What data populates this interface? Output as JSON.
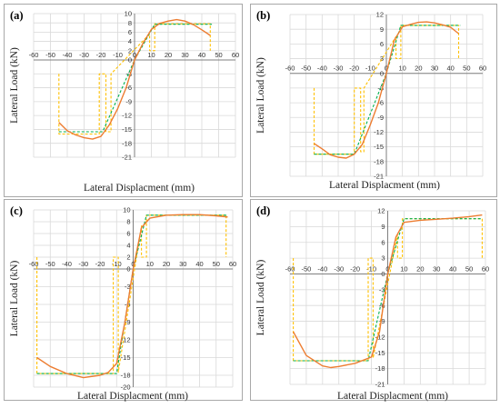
{
  "colors": {
    "curve": "#ed7d31",
    "bilinear": "#00b050",
    "guide": "#ffc000",
    "grid": "#d9d9d9",
    "axis": "#7f7f7f"
  },
  "chart_data": [
    {
      "type": "line",
      "panel_label": "(a)",
      "xlabel": "Lateral Displacment (mm)",
      "ylabel": "Lateral Load (kN)",
      "xlim": [
        -60,
        60
      ],
      "ylim": [
        -21,
        10
      ],
      "x_ticks": [
        -60,
        -50,
        -40,
        -30,
        -20,
        -10,
        0,
        10,
        20,
        30,
        40,
        50,
        60
      ],
      "y_ticks": [
        -21,
        -18,
        -15,
        -12,
        -9,
        -6,
        -3,
        0,
        2,
        4,
        6,
        8,
        10
      ],
      "grid": true,
      "series": [
        {
          "style": "solid",
          "color": "orange",
          "x": [
            -45,
            -40,
            -35,
            -30,
            -25,
            -20,
            -15,
            -10,
            -5,
            0,
            5,
            10,
            15,
            20,
            25,
            30,
            35,
            40,
            45
          ],
          "y": [
            -13.5,
            -15.3,
            -16.2,
            -16.8,
            -17.1,
            -16.5,
            -14,
            -10.5,
            -6,
            0,
            3.6,
            6.6,
            7.9,
            8.4,
            8.7,
            8.4,
            7.6,
            6.5,
            5.3
          ]
        },
        {
          "style": "dashed",
          "color": "green",
          "x": [
            -45,
            -19,
            0,
            12,
            46
          ],
          "y": [
            -15.5,
            -15.5,
            0,
            7.7,
            7.7
          ]
        },
        {
          "style": "dashed",
          "color": "yellow",
          "x": [
            -45,
            -45,
            -21,
            -21,
            -17,
            -17,
            -14,
            -14,
            9,
            9,
            12,
            12,
            45,
            45
          ],
          "y": [
            -3,
            -16,
            -16,
            -3,
            -3,
            -15.5,
            -15.5,
            -3,
            5.6,
            2,
            2,
            7.8,
            7.8,
            2
          ]
        }
      ]
    },
    {
      "type": "line",
      "panel_label": "(b)",
      "xlabel": "Lateral Displacment (mm)",
      "ylabel": "Lateral Load (kN)",
      "xlim": [
        -60,
        60
      ],
      "ylim": [
        -21,
        12
      ],
      "x_ticks": [
        -60,
        -50,
        -40,
        -30,
        -20,
        -10,
        0,
        10,
        20,
        30,
        40,
        50,
        60
      ],
      "y_ticks": [
        -21,
        -18,
        -15,
        -12,
        -9,
        -6,
        -3,
        0,
        3,
        6,
        9,
        12
      ],
      "grid": true,
      "series": [
        {
          "style": "solid",
          "color": "orange",
          "x": [
            -45,
            -40,
            -35,
            -30,
            -25,
            -20,
            -15,
            -10,
            -5,
            0,
            5,
            10,
            15,
            20,
            25,
            30,
            35,
            40,
            45
          ],
          "y": [
            -14.3,
            -15.4,
            -16.6,
            -17.1,
            -17.3,
            -16.5,
            -14.5,
            -10.5,
            -6,
            0,
            6.8,
            9.5,
            10,
            10.4,
            10.5,
            10.3,
            9.9,
            9.4,
            8.1
          ]
        },
        {
          "style": "dashed",
          "color": "green",
          "x": [
            -45,
            -20,
            0,
            9,
            46
          ],
          "y": [
            -16.5,
            -16.5,
            0,
            9.8,
            9.8
          ]
        },
        {
          "style": "dashed",
          "color": "yellow",
          "x": [
            -45,
            -45,
            -20,
            -20,
            -16,
            -16,
            -14,
            -14,
            6,
            6,
            9,
            9,
            45,
            45
          ],
          "y": [
            -3,
            -16.5,
            -16.5,
            -3,
            -3,
            -16,
            -16,
            -3,
            7.5,
            3,
            3,
            9.8,
            9.8,
            3
          ]
        }
      ]
    },
    {
      "type": "line",
      "panel_label": "(c)",
      "xlabel": "Lateral Displacment (mm)",
      "ylabel": "Lateral Load (kN)",
      "xlim": [
        -60,
        60
      ],
      "ylim": [
        -20,
        10
      ],
      "x_ticks": [
        -60,
        -50,
        -40,
        -30,
        -20,
        -10,
        0,
        10,
        20,
        30,
        40,
        50,
        60
      ],
      "y_ticks": [
        -20,
        -18,
        -15,
        -12,
        -9,
        -6,
        -3,
        0,
        2,
        4,
        6,
        8,
        10
      ],
      "grid": true,
      "series": [
        {
          "style": "solid",
          "color": "orange",
          "x": [
            -58,
            -50,
            -40,
            -30,
            -20,
            -15,
            -10,
            -5,
            0,
            5,
            10,
            20,
            30,
            40,
            50,
            57
          ],
          "y": [
            -15,
            -16.5,
            -17.7,
            -18.4,
            -18,
            -17.5,
            -16,
            -9,
            0,
            7,
            8.6,
            9.1,
            9.2,
            9.2,
            9.0,
            8.8
          ]
        },
        {
          "style": "dashed",
          "color": "green",
          "x": [
            -58,
            -10,
            0,
            8,
            57
          ],
          "y": [
            -17.7,
            -17.7,
            0,
            9.1,
            9.1
          ]
        },
        {
          "style": "dashed",
          "color": "yellow",
          "x": [
            -58,
            -58,
            -12,
            -12,
            -9,
            -9,
            5,
            5,
            8,
            8,
            56,
            56
          ],
          "y": [
            2,
            -17.7,
            -17.7,
            2,
            2,
            -17.5,
            7.3,
            2,
            2,
            9.1,
            9.1,
            2
          ]
        }
      ]
    },
    {
      "type": "line",
      "panel_label": "(d)",
      "xlabel": "Lateral Displacment (mm)",
      "ylabel": "Lateral Load (kN)",
      "xlim": [
        -60,
        60
      ],
      "ylim": [
        -21,
        12
      ],
      "x_ticks": [
        -60,
        -50,
        -40,
        -30,
        -20,
        -10,
        0,
        10,
        20,
        30,
        40,
        50,
        60
      ],
      "y_ticks": [
        -21,
        -18,
        -15,
        -12,
        -9,
        -6,
        -3,
        0,
        3,
        6,
        9,
        12
      ],
      "grid": true,
      "series": [
        {
          "style": "solid",
          "color": "orange",
          "x": [
            -58,
            -50,
            -40,
            -35,
            -30,
            -20,
            -10,
            -5,
            0,
            5,
            10,
            20,
            30,
            40,
            50,
            58
          ],
          "y": [
            -11,
            -15.5,
            -17.5,
            -17.8,
            -17.6,
            -17,
            -15.8,
            -11,
            0,
            7,
            9.8,
            10.2,
            10.4,
            10.6,
            10.9,
            11.2
          ]
        },
        {
          "style": "dashed",
          "color": "green",
          "x": [
            -58,
            -12,
            0,
            10,
            58
          ],
          "y": [
            -16.5,
            -16.5,
            0,
            10.5,
            10.5
          ]
        },
        {
          "style": "dashed",
          "color": "yellow",
          "x": [
            -58,
            -58,
            -12,
            -12,
            -9,
            -9,
            6,
            6,
            9,
            9,
            58,
            58
          ],
          "y": [
            3,
            -16.5,
            -16.5,
            3,
            3,
            -16,
            7.5,
            3,
            3,
            10.5,
            10.5,
            3
          ]
        }
      ]
    }
  ]
}
